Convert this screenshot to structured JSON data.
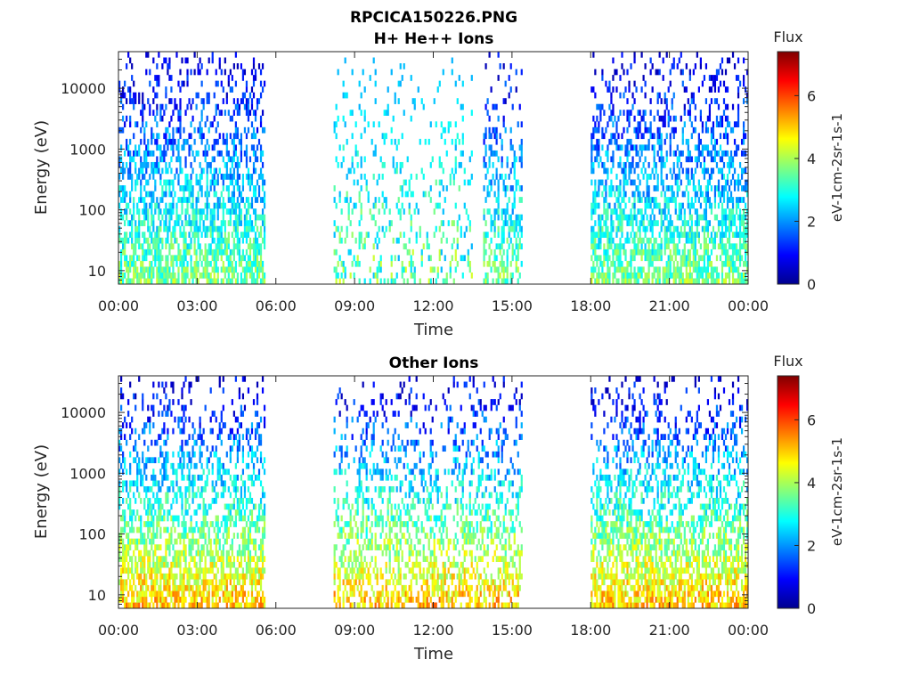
{
  "figure_title": "RPCICA150226.PNG",
  "chart_data": [
    {
      "type": "heatmap",
      "title": "H+ He++ Ions",
      "xlabel": "Time",
      "ylabel": "Energy (eV)",
      "x_ticks": [
        "00:00",
        "03:00",
        "06:00",
        "09:00",
        "12:00",
        "15:00",
        "18:00",
        "21:00",
        "00:00"
      ],
      "x_range_hours": [
        0,
        24
      ],
      "y_scale": "log",
      "y_range": [
        6,
        40000
      ],
      "y_ticks": [
        10,
        100,
        1000,
        10000
      ],
      "y_tick_labels": [
        "10",
        "100",
        "1000",
        "10000"
      ],
      "colorbar": {
        "title": "Flux",
        "label": "eV-1cm-2sr-1s-1",
        "range": [
          0,
          7.4
        ],
        "ticks": [
          0,
          2,
          4,
          6
        ],
        "tick_labels": [
          "0",
          "2",
          "4",
          "6"
        ],
        "colormap": "jet"
      },
      "data_intervals": [
        {
          "start_hour": 0.0,
          "end_hour": 5.6,
          "level": "high"
        },
        {
          "start_hour": 8.2,
          "end_hour": 13.5,
          "level": "sparse"
        },
        {
          "start_hour": 13.9,
          "end_hour": 15.4,
          "level": "medium"
        },
        {
          "start_hour": 18.0,
          "end_hour": 24.0,
          "level": "high"
        }
      ]
    },
    {
      "type": "heatmap",
      "title": "Other Ions",
      "xlabel": "Time",
      "ylabel": "Energy (eV)",
      "x_ticks": [
        "00:00",
        "03:00",
        "06:00",
        "09:00",
        "12:00",
        "15:00",
        "18:00",
        "21:00",
        "00:00"
      ],
      "x_range_hours": [
        0,
        24
      ],
      "y_scale": "log",
      "y_range": [
        6,
        40000
      ],
      "y_ticks": [
        10,
        100,
        1000,
        10000
      ],
      "y_tick_labels": [
        "10",
        "100",
        "1000",
        "10000"
      ],
      "colorbar": {
        "title": "Flux",
        "label": "eV-1cm-2sr-1s-1",
        "range": [
          0,
          7.4
        ],
        "ticks": [
          0,
          2,
          4,
          6
        ],
        "tick_labels": [
          "0",
          "2",
          "4",
          "6"
        ],
        "colormap": "jet"
      },
      "data_intervals": [
        {
          "start_hour": 0.0,
          "end_hour": 5.6,
          "level": "high"
        },
        {
          "start_hour": 8.2,
          "end_hour": 15.4,
          "level": "medium"
        },
        {
          "start_hour": 18.0,
          "end_hour": 24.0,
          "level": "high"
        }
      ]
    }
  ]
}
